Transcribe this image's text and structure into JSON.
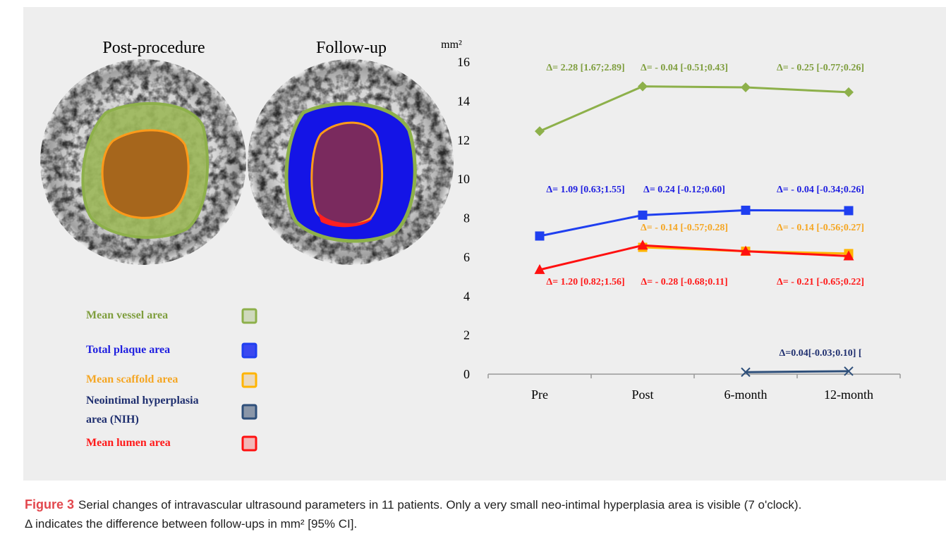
{
  "panels": {
    "left_title": "Post-procedure",
    "right_title": "Follow-up"
  },
  "chart_data": {
    "type": "line",
    "ylabel": "mm²",
    "categories": [
      "Pre",
      "Post",
      "6-month",
      "12-month"
    ],
    "ylim": [
      0,
      16
    ],
    "yticks": [
      0,
      2,
      4,
      6,
      8,
      10,
      12,
      14,
      16
    ],
    "series": [
      {
        "name": "Mean vessel area",
        "color": "#8db04a",
        "text_color": "#7f9e3e",
        "swatch": "#cfd9bd",
        "marker": "diamond",
        "values": [
          12.45,
          14.75,
          14.7,
          14.45
        ],
        "delta_labels": [
          "Δ= 2.28 [1.67;2.89]",
          "Δ= - 0.04 [-0.51;0.43]",
          "Δ= - 0.25 [-0.77;0.26]"
        ]
      },
      {
        "name": "Total plaque area",
        "color": "#1f3ff0",
        "text_color": "#1f1fe0",
        "swatch": "#3a48f0",
        "marker": "square",
        "values": [
          7.08,
          8.15,
          8.4,
          8.38
        ],
        "delta_labels": [
          "Δ= 1.09 [0.63;1.55]",
          "Δ= 0.24 [-0.12;0.60]",
          "Δ= - 0.04 [-0.34;0.26]"
        ]
      },
      {
        "name": "Mean scaffold area",
        "color": "#ffb400",
        "text_color": "#f5a623",
        "swatch": "#ead9bf",
        "marker": "square",
        "values": [
          null,
          6.5,
          6.3,
          6.18
        ],
        "delta_labels": [
          null,
          "Δ= - 0.14 [-0.57;0.28]",
          "Δ= - 0.14 [-0.56;0.27]"
        ]
      },
      {
        "name": [
          "Neointimal hyperplasia",
          "area (NIH)"
        ],
        "color": "#2e4f7a",
        "text_color": "#1f2f6f",
        "swatch": "#8a96a8",
        "marker": "x",
        "values": [
          null,
          null,
          0.1,
          0.15
        ],
        "delta_labels": [
          null,
          null,
          "Δ=0.04[-0.03;0.10] ["
        ]
      },
      {
        "name": "Mean lumen area",
        "color": "#ff1010",
        "text_color": "#ff1a1a",
        "swatch": "#f2b8b8",
        "marker": "triangle",
        "values": [
          5.35,
          6.6,
          6.3,
          6.05
        ],
        "delta_labels": [
          "Δ= 1.20 [0.82;1.56]",
          "Δ= - 0.28 [-0.68;0.11]",
          "Δ= - 0.21 [-0.65;0.22]"
        ]
      }
    ]
  },
  "caption": {
    "label": "Figure 3",
    "text_1": "Serial changes of intravascular ultrasound parameters in 11 patients. Only a very small neo-intimal hyperplasia area is visible (7 o'clock).",
    "text_2": "Δ indicates the difference between follow-ups in mm² [95% CI]."
  }
}
